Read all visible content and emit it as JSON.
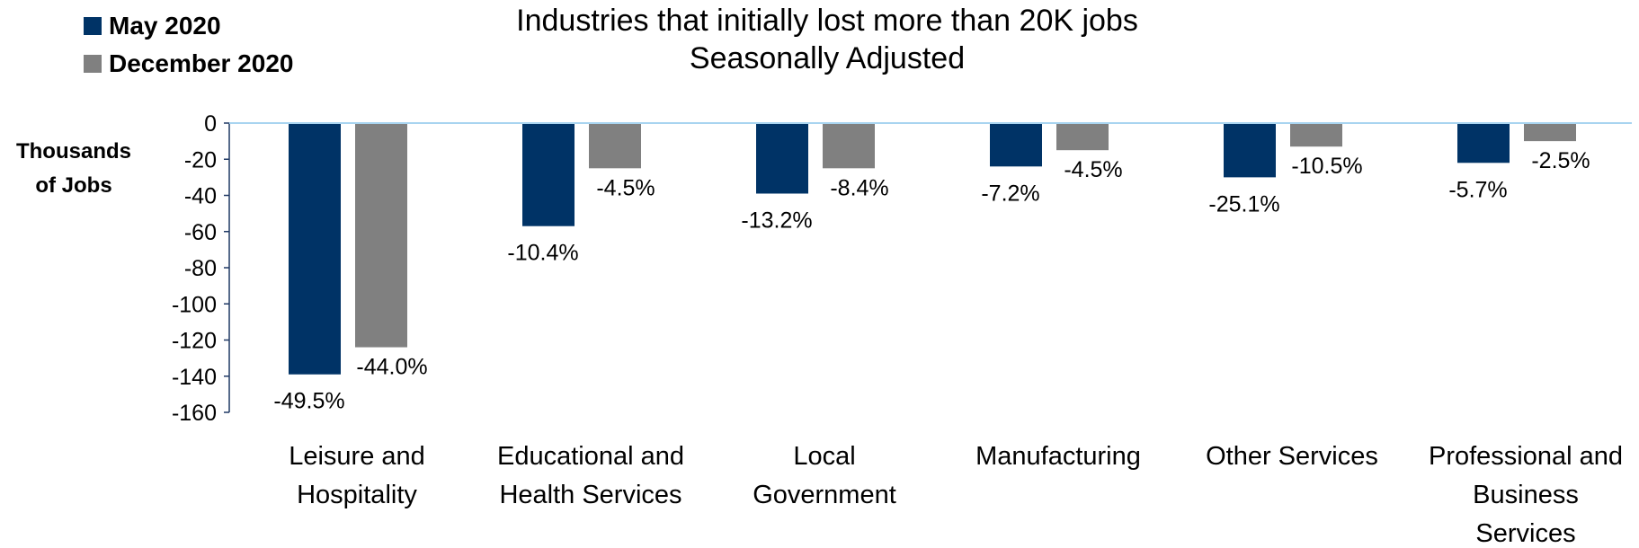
{
  "chart_data": {
    "type": "bar",
    "title": "Industries that initially lost more than 20K jobs",
    "subtitle": "Seasonally Adjusted",
    "ylabel": "Thousands of Jobs",
    "xlabel": "",
    "ylim": [
      -160,
      0
    ],
    "yticks": [
      0,
      -20,
      -40,
      -60,
      -80,
      -100,
      -120,
      -140,
      -160
    ],
    "categories": [
      [
        "Leisure and",
        "Hospitality"
      ],
      [
        "Educational and",
        "Health Services"
      ],
      [
        "Local",
        "Government"
      ],
      [
        "Manufacturing"
      ],
      [
        "Other Services"
      ],
      [
        "Professional and",
        "Business",
        "Services"
      ]
    ],
    "series": [
      {
        "name": "May 2020",
        "color": "#003366",
        "values": [
          -139,
          -57,
          -39,
          -24,
          -30,
          -22
        ],
        "labels": [
          "-49.5%",
          "-10.4%",
          "-13.2%",
          "-7.2%",
          "-25.1%",
          "-5.7%"
        ]
      },
      {
        "name": "December 2020",
        "color": "#808080",
        "values": [
          -124,
          -25,
          -25,
          -15,
          -13,
          -10
        ],
        "labels": [
          "-44.0%",
          "-4.5%",
          "-8.4%",
          "-4.5%",
          "-10.5%",
          "-2.5%"
        ]
      }
    ],
    "legend": "top-left",
    "grid": false,
    "zero_line_color": "#a8d4f0"
  }
}
